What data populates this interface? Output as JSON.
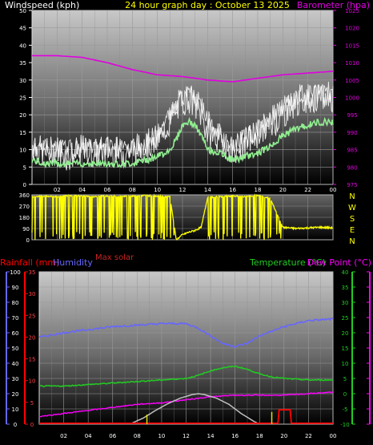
{
  "header": {
    "left_label": "Windspeed (kph)",
    "title": "24 hour graph day : October 13 2025",
    "right_label": "Barometer (hpa)"
  },
  "colors": {
    "windspeed": "#e8e8e8",
    "gust": "#ffffff",
    "avg_wind": "#90ee90",
    "barometer": "#e000e0",
    "direction": "#ffff00",
    "rain": "#ff0000",
    "humidity": "#6666ff",
    "temperature": "#22cc22",
    "dewpoint": "#ff00ff",
    "solar": "#c0c0c0",
    "uv_ticks": "#e0e000",
    "title": "#ffff00",
    "frame": "#dddddd"
  },
  "compass": [
    "N",
    "W",
    "S",
    "E",
    "N"
  ],
  "bottom_legend": {
    "rainfall": "Rainfall (mm)",
    "humidity": "Humidity",
    "max_solar": "Max solar",
    "temperature": "Temperature (°C)",
    "dewpoint": "Dew Point (°C)"
  },
  "chart_data": [
    {
      "type": "line",
      "panel": "wind-barometer",
      "x_ticks": [
        "02",
        "04",
        "06",
        "08",
        "10",
        "12",
        "14",
        "16",
        "18",
        "20",
        "22",
        "00"
      ],
      "xlim": [
        0,
        24
      ],
      "y_left_ticks": [
        "0",
        "5",
        "10",
        "15",
        "20",
        "25",
        "30",
        "35",
        "40",
        "45",
        "50"
      ],
      "ylim_left": [
        0,
        50
      ],
      "y_right_ticks": [
        "975",
        "980",
        "985",
        "990",
        "995",
        "1000",
        "1005",
        "1010",
        "1015",
        "1020",
        "1025"
      ],
      "ylim_right": [
        975,
        1025
      ],
      "series": [
        {
          "name": "Windspeed (kph)",
          "axis": "left",
          "x": [
            0,
            1,
            2,
            3,
            4,
            5,
            6,
            7,
            8,
            9,
            10,
            11,
            11.5,
            12,
            12.5,
            13,
            13.5,
            14,
            15,
            16,
            17,
            18,
            19,
            20,
            21,
            22,
            23,
            24
          ],
          "y": [
            11,
            9,
            10,
            8,
            10,
            9,
            10,
            9,
            10,
            11,
            13,
            18,
            22,
            24,
            25,
            23,
            20,
            15,
            13,
            10,
            12,
            15,
            17,
            20,
            24,
            25,
            24,
            25
          ]
        },
        {
          "name": "Gust",
          "axis": "left",
          "x": [
            0,
            2,
            4,
            6,
            8,
            10,
            11.5,
            12.5,
            13.5,
            14.5,
            16,
            17,
            18.5,
            20,
            21.5,
            23,
            24
          ],
          "y": [
            14,
            13,
            13,
            14,
            13,
            16,
            26,
            29,
            26,
            18,
            14,
            16,
            20,
            26,
            28,
            29,
            30
          ]
        },
        {
          "name": "Average wind",
          "axis": "left",
          "x": [
            0,
            1,
            2,
            3,
            4,
            5,
            6,
            7,
            8,
            9,
            10,
            11,
            11.5,
            12,
            12.5,
            13,
            13.5,
            14,
            15,
            16,
            17,
            18,
            19,
            20,
            21,
            22,
            23,
            24
          ],
          "y": [
            7,
            6,
            6,
            6,
            6,
            6,
            6,
            6,
            6,
            7,
            8,
            10,
            13,
            17,
            18,
            17,
            14,
            10,
            9,
            7,
            8,
            9,
            11,
            14,
            16,
            17,
            18,
            18
          ]
        },
        {
          "name": "Barometer (hpa)",
          "axis": "right",
          "x": [
            0,
            2,
            4,
            6,
            8,
            10,
            12,
            14,
            16,
            18,
            20,
            22,
            24
          ],
          "y": [
            1012,
            1012,
            1011.5,
            1010,
            1008,
            1006.5,
            1006,
            1005,
            1004.5,
            1005.5,
            1006.5,
            1007,
            1007.5
          ]
        }
      ]
    },
    {
      "type": "scatter",
      "panel": "wind-direction",
      "x_ticks": [
        "02",
        "04",
        "06",
        "08",
        "10",
        "12",
        "14",
        "16",
        "18",
        "20",
        "22",
        "00"
      ],
      "xlim": [
        0,
        24
      ],
      "y_ticks": [
        "0",
        "90",
        "180",
        "270",
        "360"
      ],
      "ylim": [
        0,
        360
      ],
      "series": [
        {
          "name": "Wind direction",
          "x": [
            0,
            1,
            2,
            3,
            4,
            5,
            6,
            7,
            8,
            9,
            10,
            11,
            11.5,
            12,
            12.5,
            13,
            13.5,
            14,
            15,
            16,
            17,
            18,
            19,
            20,
            21,
            22,
            23,
            24
          ],
          "y": [
            345,
            350,
            345,
            355,
            350,
            345,
            350,
            345,
            350,
            355,
            350,
            345,
            0,
            40,
            60,
            75,
            100,
            340,
            345,
            350,
            345,
            355,
            330,
            100,
            90,
            95,
            100,
            95
          ]
        }
      ]
    },
    {
      "type": "line",
      "panel": "temperature-humidity",
      "x_ticks": [
        "02",
        "04",
        "06",
        "08",
        "10",
        "12",
        "14",
        "16",
        "18",
        "20",
        "22",
        "00"
      ],
      "xlim": [
        0,
        24
      ],
      "y_humidity_ticks": [
        "0",
        "10",
        "20",
        "30",
        "40",
        "50",
        "60",
        "70",
        "80",
        "90",
        "100"
      ],
      "ylim_humidity": [
        0,
        100
      ],
      "y_rain_ticks": [
        "0",
        "5",
        "10",
        "15",
        "20",
        "25",
        "30",
        "35"
      ],
      "ylim_rain": [
        0,
        35
      ],
      "y_temp_ticks": [
        "-10",
        "-5",
        "0",
        "5",
        "10",
        "15",
        "20",
        "25",
        "30",
        "35",
        "40"
      ],
      "ylim_temp": [
        -10,
        40
      ],
      "series": [
        {
          "name": "Humidity",
          "axis": "humidity",
          "x": [
            0,
            2,
            4,
            6,
            8,
            10,
            12,
            13,
            14,
            15,
            16,
            17,
            18,
            20,
            22,
            24
          ],
          "y": [
            57,
            60,
            62,
            64,
            65,
            66,
            66,
            63,
            58,
            53,
            51,
            53,
            58,
            64,
            68,
            69
          ]
        },
        {
          "name": "Temperature (°C)",
          "axis": "temp",
          "x": [
            0,
            2,
            4,
            6,
            8,
            10,
            12,
            13,
            14,
            15,
            16,
            17,
            18,
            19,
            20,
            22,
            24
          ],
          "y": [
            2.5,
            2.5,
            3,
            3.5,
            4,
            4.5,
            5,
            6,
            7.5,
            8.5,
            9,
            8,
            6.5,
            5.5,
            5,
            4.5,
            4.5
          ]
        },
        {
          "name": "Dew Point (°C)",
          "axis": "temp",
          "x": [
            0,
            2,
            4,
            6,
            8,
            10,
            12,
            14,
            16,
            18,
            20,
            22,
            24
          ],
          "y": [
            -7.5,
            -6.5,
            -5.5,
            -4.5,
            -3.5,
            -3,
            -2,
            -1,
            -0.5,
            -0.5,
            -0.5,
            0,
            0.5
          ]
        },
        {
          "name": "Max solar",
          "axis": "temp",
          "x": [
            7.5,
            8.5,
            9.5,
            10.5,
            11.5,
            12.5,
            13,
            13.5,
            14.5,
            15.5,
            16.5,
            17.5,
            18
          ],
          "y": [
            -9.8,
            -8,
            -5.5,
            -3.3,
            -1.5,
            -0.3,
            0,
            -0.3,
            -1.5,
            -3.5,
            -6.5,
            -9,
            -10
          ]
        },
        {
          "name": "Rainfall (mm)",
          "axis": "rain",
          "x": [
            0,
            19.2,
            19.5,
            19.6,
            20.5,
            20.6,
            24
          ],
          "y": [
            0.2,
            0.2,
            0.2,
            3.3,
            3.3,
            0.2,
            0.2
          ]
        }
      ],
      "uv_ticks": [
        {
          "x": 8.8,
          "value": 2.2
        },
        {
          "x": 19,
          "value": 2.8
        }
      ]
    }
  ]
}
